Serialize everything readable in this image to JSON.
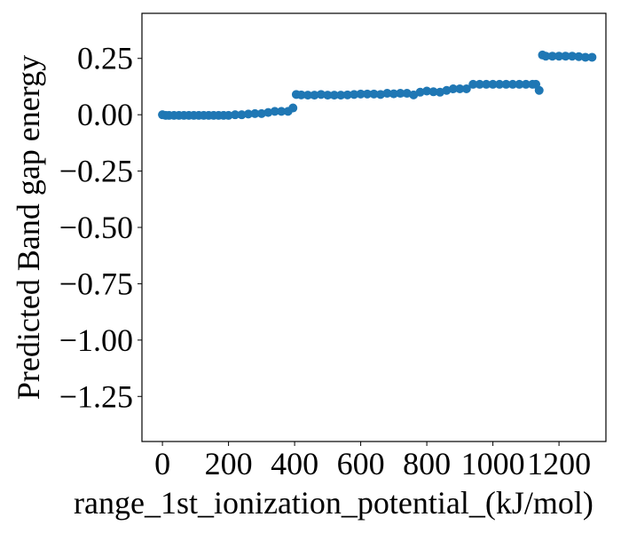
{
  "chart_data": {
    "type": "scatter",
    "x_label": "range_1st_ionization_potential_(kJ/mol)",
    "y_label": "Predicted Band gap energy",
    "color": "#1f77b4",
    "xlim": [
      -62,
      1342
    ],
    "ylim": [
      -1.45,
      0.45
    ],
    "xticks": [
      0,
      200,
      400,
      600,
      800,
      1000,
      1200
    ],
    "yticks": [
      {
        "value": -1.25,
        "label": "−1.25"
      },
      {
        "value": -1.0,
        "label": "−1.00"
      },
      {
        "value": -0.75,
        "label": "−0.75"
      },
      {
        "value": -0.5,
        "label": "−0.50"
      },
      {
        "value": -0.25,
        "label": "−0.25"
      },
      {
        "value": 0,
        "label": "0.00"
      },
      0.25
    ],
    "x": [
      0,
      10,
      20,
      35,
      50,
      65,
      80,
      95,
      110,
      125,
      140,
      155,
      170,
      185,
      200,
      220,
      240,
      260,
      280,
      300,
      320,
      340,
      360,
      380,
      395,
      405,
      420,
      440,
      460,
      480,
      500,
      520,
      540,
      560,
      580,
      600,
      620,
      640,
      660,
      680,
      700,
      720,
      740,
      760,
      780,
      800,
      820,
      840,
      860,
      880,
      900,
      920,
      940,
      960,
      980,
      1000,
      1020,
      1040,
      1060,
      1080,
      1100,
      1120,
      1130,
      1140,
      1150,
      1160,
      1180,
      1200,
      1220,
      1240,
      1260,
      1280,
      1300
    ],
    "y": [
      0.0,
      -0.003,
      -0.003,
      -0.003,
      -0.003,
      -0.003,
      -0.003,
      -0.003,
      -0.003,
      -0.003,
      -0.003,
      -0.003,
      -0.003,
      -0.003,
      -0.003,
      0.0,
      0.0,
      0.003,
      0.005,
      0.005,
      0.01,
      0.015,
      0.015,
      0.015,
      0.03,
      0.09,
      0.088,
      0.087,
      0.087,
      0.09,
      0.087,
      0.087,
      0.087,
      0.088,
      0.09,
      0.092,
      0.092,
      0.092,
      0.09,
      0.095,
      0.093,
      0.095,
      0.095,
      0.088,
      0.1,
      0.105,
      0.102,
      0.1,
      0.108,
      0.115,
      0.115,
      0.115,
      0.135,
      0.135,
      0.135,
      0.135,
      0.135,
      0.135,
      0.135,
      0.135,
      0.135,
      0.135,
      0.135,
      0.108,
      0.265,
      0.26,
      0.26,
      0.26,
      0.26,
      0.26,
      0.258,
      0.255,
      0.255
    ]
  }
}
